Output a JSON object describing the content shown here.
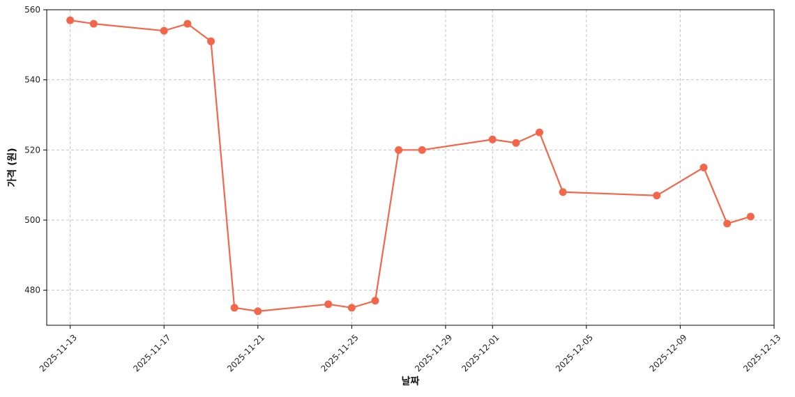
{
  "chart_data": {
    "type": "line",
    "title": "",
    "xlabel": "날짜",
    "ylabel": "가격 (원)",
    "xlim": [
      "2025-11-12",
      "2025-12-13"
    ],
    "ylim": [
      470,
      560
    ],
    "x_ticks": [
      "2025-11-13",
      "2025-11-17",
      "2025-11-21",
      "2025-11-25",
      "2025-11-29",
      "2025-12-01",
      "2025-12-05",
      "2025-12-09",
      "2025-12-13"
    ],
    "y_ticks": [
      480,
      500,
      520,
      540,
      560
    ],
    "grid": true,
    "legend": "none",
    "series": [
      {
        "color": "#f4664a",
        "points": [
          {
            "x": "2025-11-13",
            "y": 557
          },
          {
            "x": "2025-11-14",
            "y": 556
          },
          {
            "x": "2025-11-17",
            "y": 554
          },
          {
            "x": "2025-11-18",
            "y": 556
          },
          {
            "x": "2025-11-19",
            "y": 551
          },
          {
            "x": "2025-11-20",
            "y": 475
          },
          {
            "x": "2025-11-21",
            "y": 474
          },
          {
            "x": "2025-11-24",
            "y": 476
          },
          {
            "x": "2025-11-25",
            "y": 475
          },
          {
            "x": "2025-11-26",
            "y": 477
          },
          {
            "x": "2025-11-27",
            "y": 520
          },
          {
            "x": "2025-11-28",
            "y": 520
          },
          {
            "x": "2025-12-01",
            "y": 523
          },
          {
            "x": "2025-12-02",
            "y": 522
          },
          {
            "x": "2025-12-03",
            "y": 525
          },
          {
            "x": "2025-12-04",
            "y": 508
          },
          {
            "x": "2025-12-08",
            "y": 507
          },
          {
            "x": "2025-12-10",
            "y": 515
          },
          {
            "x": "2025-12-11",
            "y": 499
          },
          {
            "x": "2025-12-12",
            "y": 501
          }
        ]
      }
    ]
  }
}
